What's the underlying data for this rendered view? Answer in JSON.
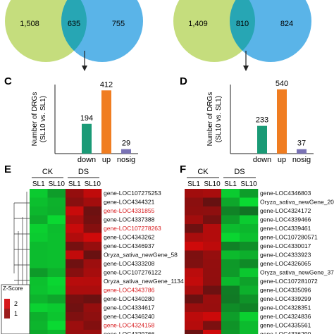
{
  "chart_data": [
    {
      "type": "venn",
      "sets": [
        {
          "only": "1,508",
          "color": "#c5dd7d"
        },
        {
          "only": "755",
          "color": "#5ab4e8"
        }
      ],
      "overlap": "635"
    },
    {
      "type": "venn",
      "sets": [
        {
          "only": "1,409",
          "color": "#c5dd7d"
        },
        {
          "only": "824",
          "color": "#5ab4e8"
        }
      ],
      "overlap": "810"
    },
    {
      "type": "bar",
      "panel": "C",
      "ylabel_line1": "Number of DRGs",
      "ylabel_line2": "(SL10 vs. SL1)",
      "categories": [
        "down",
        "up",
        "nosig"
      ],
      "values": [
        194,
        412,
        29
      ],
      "value_labels": [
        "194",
        "412",
        "29"
      ],
      "colors": [
        "#1a9a76",
        "#f07d21",
        "#7a73b6"
      ],
      "ylim": [
        0,
        450
      ]
    },
    {
      "type": "bar",
      "panel": "D",
      "ylabel_line1": "Number of DRGs",
      "ylabel_line2": "(SL10 vs. SL1)",
      "categories": [
        "down",
        "up",
        "nosig"
      ],
      "values": [
        233,
        540,
        37
      ],
      "value_labels": [
        "233",
        "540",
        "37"
      ],
      "colors": [
        "#1a9a76",
        "#f07d21",
        "#7a73b6"
      ],
      "ylim": [
        0,
        580
      ]
    },
    {
      "type": "heatmap",
      "panel": "E",
      "groups": [
        "CK",
        "DS"
      ],
      "columns": [
        "SL1",
        "SL10",
        "SL1",
        "SL10"
      ],
      "genes": [
        {
          "name": "gene-LOC107275253",
          "red": false
        },
        {
          "name": "gene-LOC4344321",
          "red": false
        },
        {
          "name": "gene-LOC4331855",
          "red": true
        },
        {
          "name": "gene-LOC4337388",
          "red": false
        },
        {
          "name": "gene-LOC107278263",
          "red": true
        },
        {
          "name": "gene-LOC4343262",
          "red": false
        },
        {
          "name": "gene-LOC4346937",
          "red": false
        },
        {
          "name": "Oryza_sativa_newGene_58",
          "red": false
        },
        {
          "name": "gene-LOC4333208",
          "red": false
        },
        {
          "name": "gene-LOC107276122",
          "red": false
        },
        {
          "name": "Oryza_sativa_newGene_1134",
          "red": false
        },
        {
          "name": "gene-LOC4343786",
          "red": true
        },
        {
          "name": "gene-LOC4340280",
          "red": false
        },
        {
          "name": "gene-LOC4334617",
          "red": false
        },
        {
          "name": "gene-LOC4346240",
          "red": false
        },
        {
          "name": "gene-LOC4324158",
          "red": true
        },
        {
          "name": "gene-LOC4329766",
          "red": false
        }
      ],
      "legend_title": "Z-Score",
      "legend_ticks": [
        "2",
        "1"
      ]
    },
    {
      "type": "heatmap",
      "panel": "F",
      "groups": [
        "CK",
        "DS"
      ],
      "columns": [
        "SL1",
        "SL10",
        "SL1",
        "SL10"
      ],
      "genes": [
        {
          "name": "gene-LOC4346803",
          "red": false
        },
        {
          "name": "Oryza_sativa_newGene_206",
          "red": false
        },
        {
          "name": "gene-LOC4324172",
          "red": false
        },
        {
          "name": "gene-LOC4339466",
          "red": false
        },
        {
          "name": "gene-LOC4339461",
          "red": false
        },
        {
          "name": "gene-LOC107280571",
          "red": false
        },
        {
          "name": "gene-LOC4330017",
          "red": false
        },
        {
          "name": "gene-LOC4333923",
          "red": false
        },
        {
          "name": "gene-LOC4326065",
          "red": false
        },
        {
          "name": "Oryza_sativa_newGene_37",
          "red": false
        },
        {
          "name": "gene-LOC107281072",
          "red": false
        },
        {
          "name": "gene-LOC4335096",
          "red": false
        },
        {
          "name": "gene-LOC4339299",
          "red": false
        },
        {
          "name": "gene-LOC4328351",
          "red": false
        },
        {
          "name": "gene-LOC4324836",
          "red": false
        },
        {
          "name": "gene-LOC4335561",
          "red": false
        },
        {
          "name": "gene-LOC4336290",
          "red": false
        }
      ]
    }
  ],
  "panel_letters": [
    "C",
    "D",
    "E",
    "F"
  ]
}
